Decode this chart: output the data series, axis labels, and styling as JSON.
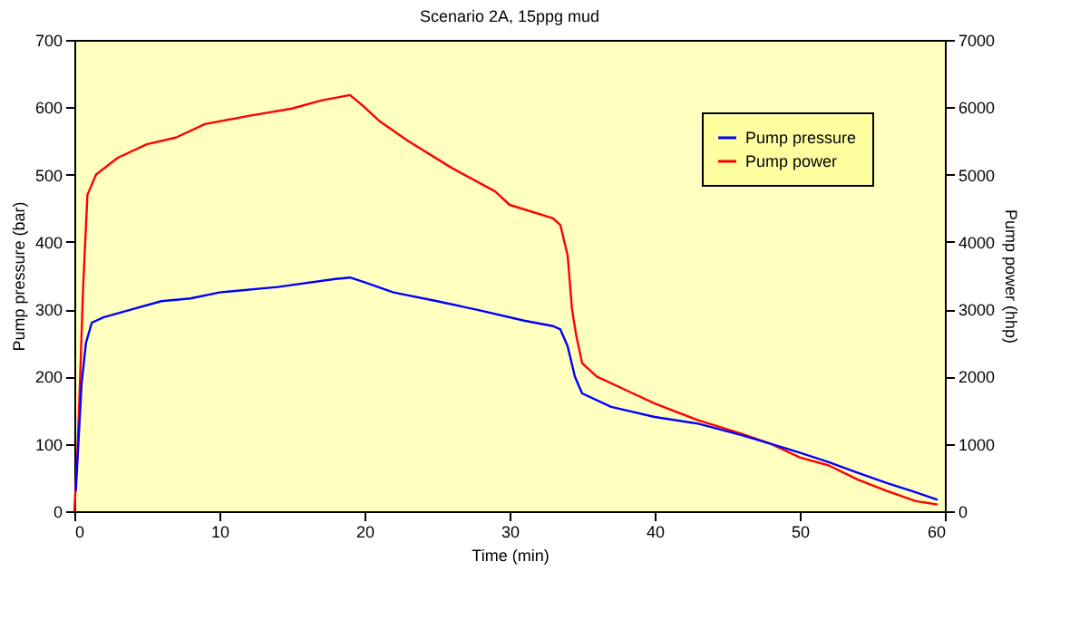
{
  "chart_data": {
    "type": "line",
    "title": "Scenario 2A, 15ppg mud",
    "xlabel": "Time (min)",
    "ylabel": "Pump pressure (bar)",
    "y2label": "Pump power (hhp)",
    "xlim": [
      0,
      60
    ],
    "xticks": [
      0,
      10,
      20,
      30,
      40,
      50,
      60
    ],
    "ylim": [
      0,
      700
    ],
    "yticks": [
      0,
      100,
      200,
      300,
      400,
      500,
      600,
      700
    ],
    "y2lim": [
      0,
      7000
    ],
    "y2ticks": [
      0,
      1000,
      2000,
      3000,
      4000,
      5000,
      6000,
      7000
    ],
    "grid": false,
    "legend": "top right",
    "line_style": "solid",
    "marker": "none",
    "series": [
      {
        "name": "Pump pressure",
        "color": "#0000ff",
        "x": [
          0.1,
          0.3,
          0.5,
          0.8,
          1.2,
          2,
          4,
          6,
          8,
          10,
          14,
          18,
          19,
          20,
          22,
          25,
          28,
          31,
          33,
          33.5,
          34,
          34.5,
          35,
          37,
          40,
          43,
          46,
          48,
          50,
          52,
          54,
          56,
          58,
          59.5
        ],
        "values": [
          30,
          110,
          190,
          250,
          280,
          288,
          300,
          312,
          316,
          325,
          333,
          345,
          347,
          340,
          325,
          312,
          298,
          283,
          275,
          270,
          245,
          200,
          175,
          155,
          140,
          130,
          113,
          100,
          87,
          73,
          57,
          42,
          28,
          17
        ]
      },
      {
        "name": "Pump power",
        "color": "#ff0000",
        "axis": "y2",
        "x": [
          0,
          0.2,
          0.4,
          0.6,
          0.9,
          1.5,
          3,
          5,
          7,
          9,
          12,
          15,
          17,
          19,
          20,
          21,
          23,
          26,
          29,
          30,
          33,
          33.5,
          34,
          34.3,
          34.6,
          35,
          36,
          38,
          40,
          43,
          46,
          48,
          50,
          52,
          54,
          56,
          58,
          59.5
        ],
        "values": [
          0,
          800,
          2000,
          3300,
          4700,
          5000,
          5250,
          5450,
          5550,
          5750,
          5870,
          5980,
          6100,
          6180,
          6000,
          5800,
          5500,
          5100,
          4750,
          4550,
          4350,
          4250,
          3800,
          3000,
          2600,
          2200,
          2000,
          1800,
          1600,
          1350,
          1150,
          1000,
          800,
          680,
          470,
          300,
          150,
          100
        ]
      }
    ]
  }
}
